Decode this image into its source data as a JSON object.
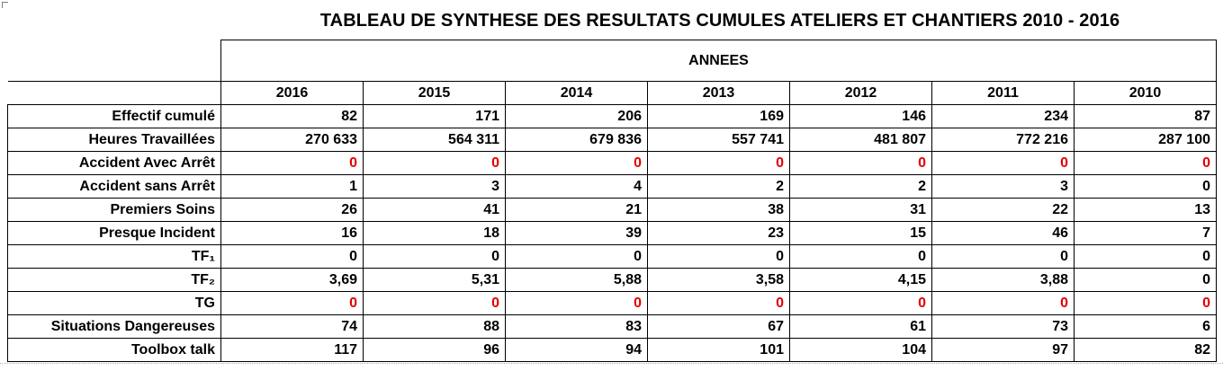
{
  "title": "TABLEAU DE SYNTHESE DES RESULTATS CUMULES ATELIERS ET CHANTIERS 2010 - 2016",
  "group_header": "ANNEES",
  "years": [
    "2016",
    "2015",
    "2014",
    "2013",
    "2012",
    "2011",
    "2010"
  ],
  "highlight_color": "#e00000",
  "rows": [
    {
      "label": "Effectif cumulé",
      "highlight": false,
      "values": [
        "82",
        "171",
        "206",
        "169",
        "146",
        "234",
        "87"
      ]
    },
    {
      "label": "Heures Travaillées",
      "highlight": false,
      "values": [
        "270 633",
        "564 311",
        "679 836",
        "557 741",
        "481 807",
        "772 216",
        "287 100"
      ]
    },
    {
      "label": "Accident Avec Arrêt",
      "highlight": true,
      "values": [
        "0",
        "0",
        "0",
        "0",
        "0",
        "0",
        "0"
      ]
    },
    {
      "label": "Accident sans Arrêt",
      "highlight": false,
      "values": [
        "1",
        "3",
        "4",
        "2",
        "2",
        "3",
        "0"
      ]
    },
    {
      "label": "Premiers Soins",
      "highlight": false,
      "values": [
        "26",
        "41",
        "21",
        "38",
        "31",
        "22",
        "13"
      ]
    },
    {
      "label": "Presque Incident",
      "highlight": false,
      "values": [
        "16",
        "18",
        "39",
        "23",
        "15",
        "46",
        "7"
      ]
    },
    {
      "label": "TF₁",
      "highlight": false,
      "values": [
        "0",
        "0",
        "0",
        "0",
        "0",
        "0",
        "0"
      ]
    },
    {
      "label": "TF₂",
      "highlight": false,
      "values": [
        "3,69",
        "5,31",
        "5,88",
        "3,58",
        "4,15",
        "3,88",
        "0"
      ]
    },
    {
      "label": "TG",
      "highlight": true,
      "values": [
        "0",
        "0",
        "0",
        "0",
        "0",
        "0",
        "0"
      ]
    },
    {
      "label": "Situations Dangereuses",
      "highlight": false,
      "values": [
        "74",
        "88",
        "83",
        "67",
        "61",
        "73",
        "6"
      ]
    },
    {
      "label": "Toolbox talk",
      "highlight": false,
      "values": [
        "117",
        "96",
        "94",
        "101",
        "104",
        "97",
        "82"
      ]
    }
  ]
}
